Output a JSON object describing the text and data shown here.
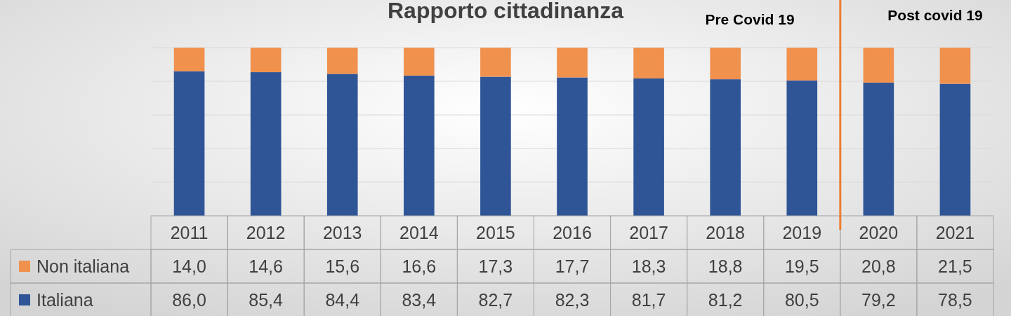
{
  "chart_data": {
    "type": "bar",
    "title": "Rapporto cittadinanza",
    "stacked": true,
    "categories": [
      "2011",
      "2012",
      "2013",
      "2014",
      "2015",
      "2016",
      "2017",
      "2018",
      "2019",
      "2020",
      "2021"
    ],
    "series": [
      {
        "name": "Italiana",
        "color": "#2f5597",
        "values": [
          86.0,
          85.4,
          84.4,
          83.4,
          82.7,
          82.3,
          81.7,
          81.2,
          80.5,
          79.2,
          78.5
        ],
        "value_labels": [
          "86,0",
          "85,4",
          "84,4",
          "83,4",
          "82,7",
          "82,3",
          "81,7",
          "81,2",
          "80,5",
          "79,2",
          "78,5"
        ]
      },
      {
        "name": "Non italiana",
        "color": "#f0914e",
        "values": [
          14.0,
          14.6,
          15.6,
          16.6,
          17.3,
          17.7,
          18.3,
          18.8,
          19.5,
          20.8,
          21.5
        ],
        "value_labels": [
          "14,0",
          "14,6",
          "15,6",
          "16,6",
          "17,3",
          "17,7",
          "18,3",
          "18,8",
          "19,5",
          "20,8",
          "21,5"
        ]
      }
    ],
    "ylim": [
      0,
      100
    ],
    "ref_lines": [
      {
        "axis": "x",
        "value": "2020",
        "color": "#ed7d31"
      }
    ],
    "tick_labels": "x",
    "grid": "y",
    "legend": "bottom",
    "annotations": [
      "Pre Covid 19",
      "Post covid 19"
    ]
  }
}
